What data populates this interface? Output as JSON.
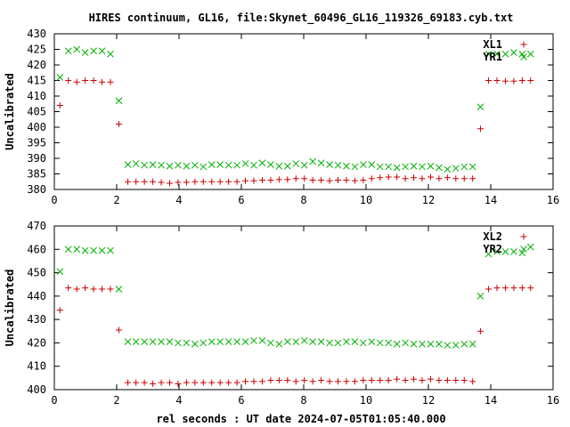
{
  "title": "HIRES continuum, GL16, file:Skynet_60496_GL16_119326_69183.cyb.txt",
  "xlabel": "rel seconds : UT date 2024-07-05T01:05:40.000",
  "colors": {
    "red": "#cc0000",
    "green": "#00b000",
    "axis": "#000000",
    "background": "#ffffff"
  },
  "chart_data": [
    {
      "type": "scatter",
      "ylabel": "Uncalibrated",
      "xlim": [
        0,
        16
      ],
      "ylim": [
        380,
        430
      ],
      "xticks": [
        0,
        2,
        4,
        6,
        8,
        10,
        12,
        14,
        16
      ],
      "yticks": [
        380,
        385,
        390,
        395,
        400,
        405,
        410,
        415,
        420,
        425,
        430
      ],
      "legend_position": "top-right",
      "series": [
        {
          "name": "XL1",
          "marker": "plus",
          "color": "#cc0000",
          "x": [
            0.18,
            0.45,
            0.72,
            0.99,
            1.26,
            1.53,
            1.8,
            2.07,
            2.36,
            2.62,
            2.89,
            3.16,
            3.43,
            3.7,
            3.97,
            4.24,
            4.51,
            4.78,
            5.05,
            5.32,
            5.59,
            5.86,
            6.13,
            6.4,
            6.67,
            6.94,
            7.21,
            7.48,
            7.75,
            8.02,
            8.29,
            8.56,
            8.83,
            9.1,
            9.37,
            9.64,
            9.91,
            10.18,
            10.45,
            10.72,
            10.99,
            11.26,
            11.53,
            11.8,
            12.07,
            12.34,
            12.61,
            12.88,
            13.15,
            13.42,
            13.67,
            13.93,
            14.2,
            14.47,
            14.74,
            15.01,
            15.28
          ],
          "y": [
            407,
            415,
            414.5,
            415,
            415,
            414.5,
            414.5,
            401,
            382.5,
            382.5,
            382.5,
            382.5,
            382.3,
            382,
            382.3,
            382.3,
            382.5,
            382.5,
            382.5,
            382.5,
            382.5,
            382.5,
            382.8,
            382.8,
            383,
            383,
            383.2,
            383.2,
            383.5,
            383.5,
            383,
            383,
            382.8,
            383,
            383,
            382.8,
            383,
            383.5,
            383.8,
            384,
            384,
            383.5,
            383.8,
            383.5,
            384,
            383.5,
            383.8,
            383.5,
            383.5,
            383.5,
            399.5,
            415,
            415,
            414.8,
            414.8,
            415,
            415
          ]
        },
        {
          "name": "YR1",
          "marker": "cross",
          "color": "#00b000",
          "x": [
            0.18,
            0.45,
            0.72,
            0.99,
            1.26,
            1.53,
            1.8,
            2.07,
            2.36,
            2.62,
            2.89,
            3.16,
            3.43,
            3.7,
            3.97,
            4.24,
            4.51,
            4.78,
            5.05,
            5.32,
            5.59,
            5.86,
            6.13,
            6.4,
            6.67,
            6.94,
            7.21,
            7.48,
            7.75,
            8.02,
            8.29,
            8.56,
            8.83,
            9.1,
            9.37,
            9.64,
            9.91,
            10.18,
            10.45,
            10.72,
            10.99,
            11.26,
            11.53,
            11.8,
            12.07,
            12.34,
            12.61,
            12.88,
            13.15,
            13.42,
            13.67,
            13.93,
            14.2,
            14.47,
            14.74,
            15.01,
            15.28
          ],
          "y": [
            416,
            424.5,
            425,
            424,
            424.5,
            424.5,
            423.5,
            408.5,
            388,
            388.3,
            387.8,
            388,
            387.8,
            387.5,
            387.8,
            387.5,
            387.8,
            387.3,
            388,
            388,
            387.8,
            387.8,
            388.3,
            387.8,
            388.5,
            388,
            387.5,
            387.5,
            388.3,
            387.8,
            389,
            388.5,
            388,
            387.8,
            387.5,
            387.3,
            388,
            388,
            387.3,
            387.3,
            387,
            387.3,
            387.5,
            387.3,
            387.5,
            387,
            386.5,
            386.8,
            387.3,
            387.3,
            406.5,
            423.5,
            423.5,
            423.5,
            424,
            423.5,
            423.5
          ]
        }
      ]
    },
    {
      "type": "scatter",
      "ylabel": "Uncalibrated",
      "xlim": [
        0,
        16
      ],
      "ylim": [
        400,
        470
      ],
      "xticks": [
        0,
        2,
        4,
        6,
        8,
        10,
        12,
        14,
        16
      ],
      "yticks": [
        400,
        410,
        420,
        430,
        440,
        450,
        460,
        470
      ],
      "legend_position": "top-right",
      "series": [
        {
          "name": "XL2",
          "marker": "plus",
          "color": "#cc0000",
          "x": [
            0.18,
            0.45,
            0.72,
            0.99,
            1.26,
            1.53,
            1.8,
            2.07,
            2.36,
            2.62,
            2.89,
            3.16,
            3.43,
            3.7,
            3.97,
            4.24,
            4.51,
            4.78,
            5.05,
            5.32,
            5.59,
            5.86,
            6.13,
            6.4,
            6.67,
            6.94,
            7.21,
            7.48,
            7.75,
            8.02,
            8.29,
            8.56,
            8.83,
            9.1,
            9.37,
            9.64,
            9.91,
            10.18,
            10.45,
            10.72,
            10.99,
            11.26,
            11.53,
            11.8,
            12.07,
            12.34,
            12.61,
            12.88,
            13.15,
            13.42,
            13.67,
            13.93,
            14.2,
            14.47,
            14.74,
            15.01,
            15.28
          ],
          "y": [
            434,
            443.5,
            443,
            443.5,
            443,
            443,
            443,
            425.5,
            403,
            403,
            403,
            402.5,
            403,
            403,
            402.5,
            403,
            403,
            403,
            403,
            403,
            403,
            403,
            403.5,
            403.5,
            403.5,
            404,
            404,
            404,
            403.5,
            404,
            403.5,
            404,
            403.5,
            403.5,
            403.5,
            403.5,
            404,
            404,
            404,
            404,
            404.5,
            404,
            404.5,
            404,
            404.5,
            404,
            404,
            404,
            404,
            403.5,
            425,
            443,
            443.5,
            443.5,
            443.5,
            443.5,
            443.5
          ]
        },
        {
          "name": "YR2",
          "marker": "cross",
          "color": "#00b000",
          "x": [
            0.18,
            0.45,
            0.72,
            0.99,
            1.26,
            1.53,
            1.8,
            2.07,
            2.36,
            2.62,
            2.89,
            3.16,
            3.43,
            3.7,
            3.97,
            4.24,
            4.51,
            4.78,
            5.05,
            5.32,
            5.59,
            5.86,
            6.13,
            6.4,
            6.67,
            6.94,
            7.21,
            7.48,
            7.75,
            8.02,
            8.29,
            8.56,
            8.83,
            9.1,
            9.37,
            9.64,
            9.91,
            10.18,
            10.45,
            10.72,
            10.99,
            11.26,
            11.53,
            11.8,
            12.07,
            12.34,
            12.61,
            12.88,
            13.15,
            13.42,
            13.67,
            13.93,
            14.2,
            14.47,
            14.74,
            15.01,
            15.28
          ],
          "y": [
            450.5,
            460,
            460,
            459.5,
            459.5,
            459.5,
            459.5,
            443,
            420.5,
            420.5,
            420.5,
            420.5,
            420.5,
            420.5,
            420,
            420,
            419.5,
            420,
            420.5,
            420.5,
            420.5,
            420.5,
            420.5,
            421,
            421,
            420,
            419.5,
            420.5,
            420.5,
            421,
            420.5,
            420.5,
            420,
            420,
            420.5,
            420.5,
            420,
            420.5,
            420,
            420,
            419.5,
            420,
            419.5,
            419.5,
            419.5,
            419.5,
            419,
            419,
            419.5,
            419.5,
            440,
            458,
            459,
            459,
            459,
            458.5,
            461
          ]
        }
      ]
    }
  ]
}
